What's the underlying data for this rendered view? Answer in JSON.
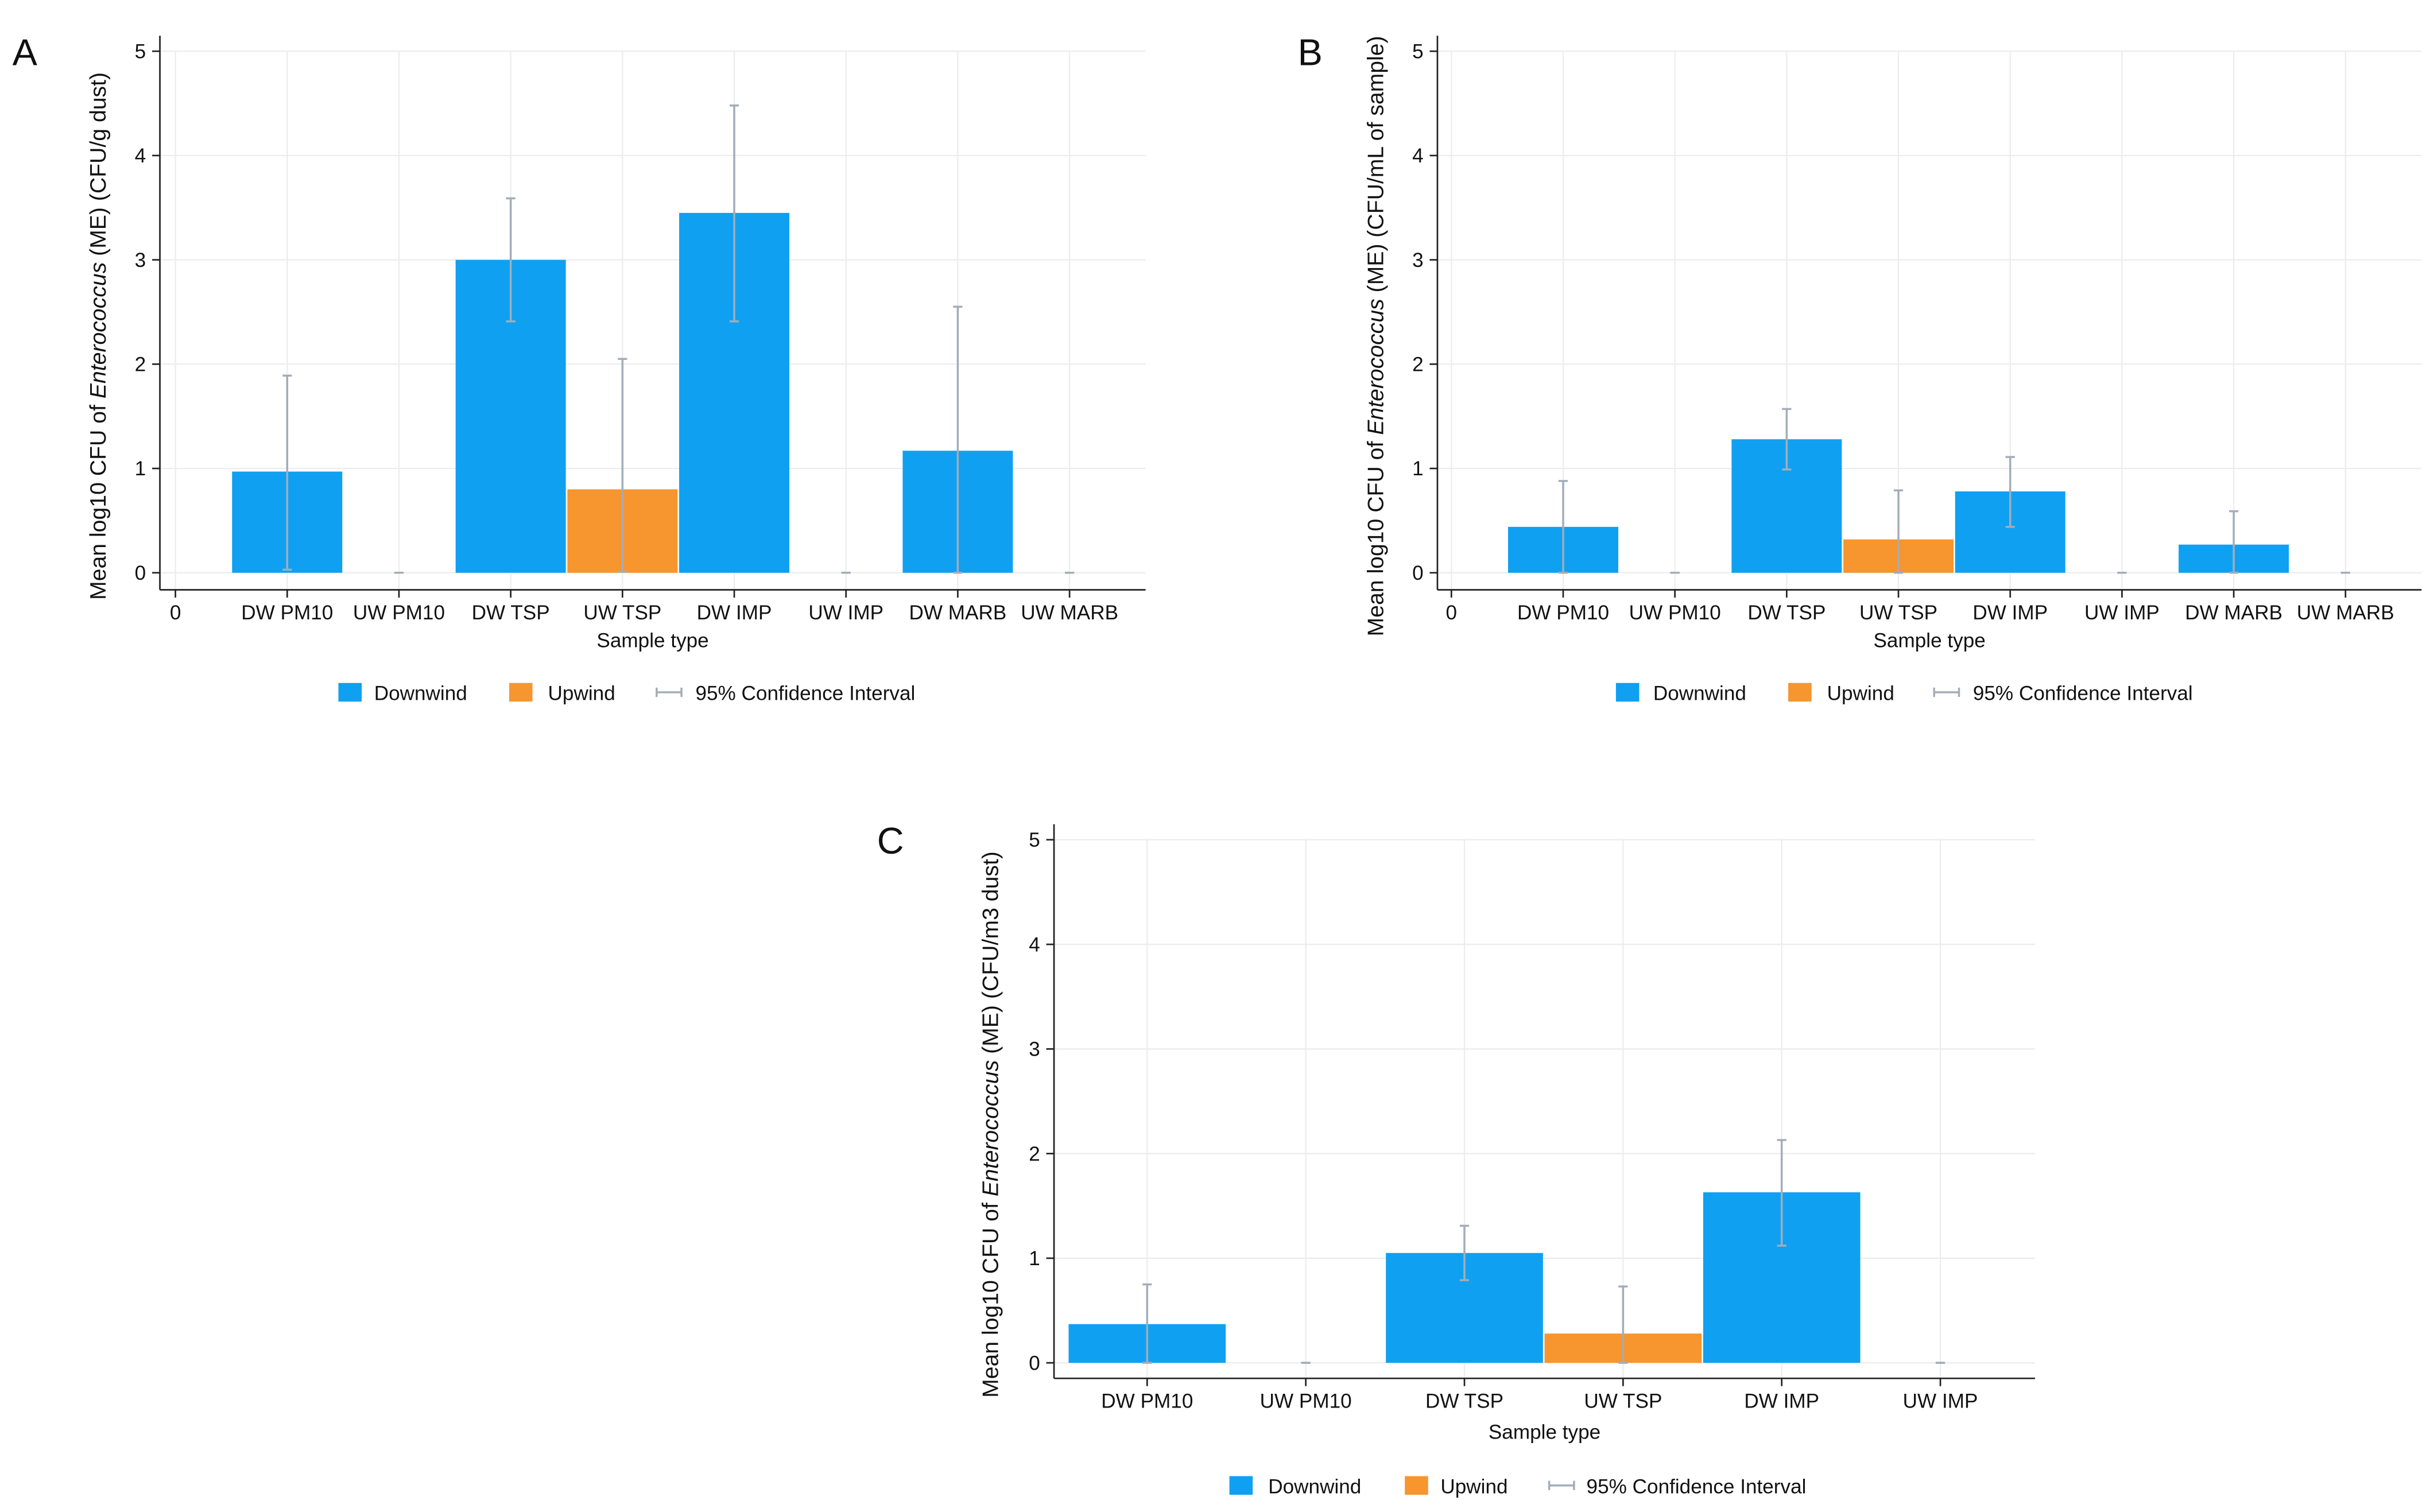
{
  "chart_data": [
    {
      "type": "bar",
      "panel_label": "A",
      "y_label_prefix": "Mean log10 CFU of ",
      "y_label_italic": "Enterococcus",
      "y_label_suffix": " (ME) (CFU/g dust)",
      "x_label": "Sample type",
      "categories": [
        "0",
        "DW PM10",
        "UW PM10",
        "DW TSP",
        "UW TSP",
        "DW IMP",
        "UW IMP",
        "DW MARB",
        "UW MARB"
      ],
      "series": [
        {
          "name": "Downwind",
          "color": "#0fa0f2",
          "values": [
            null,
            0.97,
            null,
            3.0,
            null,
            3.45,
            null,
            1.17,
            null
          ],
          "ci_low": [
            null,
            0.03,
            null,
            2.41,
            null,
            2.41,
            null,
            0,
            null
          ],
          "ci_high": [
            null,
            1.89,
            null,
            3.59,
            null,
            4.48,
            null,
            2.55,
            null
          ]
        },
        {
          "name": "Upwind",
          "color": "#f7952f",
          "values": [
            null,
            null,
            0,
            null,
            0.8,
            null,
            0,
            null,
            0
          ],
          "ci_low": [
            null,
            null,
            0,
            null,
            0.01,
            null,
            0,
            null,
            0
          ],
          "ci_high": [
            null,
            null,
            0,
            null,
            2.05,
            null,
            0,
            null,
            0
          ]
        }
      ],
      "ci_name": "95% Confidence Interval",
      "ci_color": "#a3adb9",
      "ylim": [
        0,
        5
      ],
      "yticks": [
        0,
        1,
        2,
        3,
        4,
        5
      ],
      "grid": true,
      "legend": "bottom"
    },
    {
      "type": "bar",
      "panel_label": "B",
      "y_label_prefix": "Mean log10 CFU of ",
      "y_label_italic": "Enterococcus",
      "y_label_suffix": " (ME) (CFU/mL of sample)",
      "x_label": "Sample type",
      "categories": [
        "0",
        "DW PM10",
        "UW PM10",
        "DW TSP",
        "UW TSP",
        "DW IMP",
        "UW IMP",
        "DW MARB",
        "UW MARB"
      ],
      "series": [
        {
          "name": "Downwind",
          "color": "#0fa0f2",
          "values": [
            null,
            0.44,
            null,
            1.28,
            null,
            0.78,
            null,
            0.27,
            null
          ],
          "ci_low": [
            null,
            0,
            null,
            0.99,
            null,
            0.44,
            null,
            0,
            null
          ],
          "ci_high": [
            null,
            0.88,
            null,
            1.57,
            null,
            1.11,
            null,
            0.59,
            null
          ]
        },
        {
          "name": "Upwind",
          "color": "#f7952f",
          "values": [
            null,
            null,
            0,
            null,
            0.32,
            null,
            0,
            null,
            0
          ],
          "ci_low": [
            null,
            null,
            0,
            null,
            0,
            null,
            0,
            null,
            0
          ],
          "ci_high": [
            null,
            null,
            0,
            null,
            0.79,
            null,
            0,
            null,
            0
          ]
        }
      ],
      "ci_name": "95% Confidence Interval",
      "ci_color": "#a3adb9",
      "ylim": [
        0,
        5
      ],
      "yticks": [
        0,
        1,
        2,
        3,
        4,
        5
      ],
      "grid": true,
      "legend": "bottom"
    },
    {
      "type": "bar",
      "panel_label": "C",
      "y_label_prefix": "Mean log10 CFU of ",
      "y_label_italic": "Enterococcus",
      "y_label_suffix": " (ME) (CFU/m3 dust)",
      "x_label": "Sample type",
      "categories": [
        "DW PM10",
        "UW PM10",
        "DW TSP",
        "UW TSP",
        "DW IMP",
        "UW IMP"
      ],
      "series": [
        {
          "name": "Downwind",
          "color": "#0fa0f2",
          "values": [
            0.37,
            null,
            1.05,
            null,
            1.63,
            null
          ],
          "ci_low": [
            0,
            null,
            0.79,
            null,
            1.12,
            null
          ],
          "ci_high": [
            0.75,
            null,
            1.31,
            null,
            2.13,
            null
          ]
        },
        {
          "name": "Upwind",
          "color": "#f7952f",
          "values": [
            null,
            0,
            null,
            0.28,
            null,
            0
          ],
          "ci_low": [
            null,
            0,
            null,
            0,
            null,
            0
          ],
          "ci_high": [
            null,
            0,
            null,
            0.73,
            null,
            0
          ]
        }
      ],
      "ci_name": "95% Confidence Interval",
      "ci_color": "#a3adb9",
      "ylim": [
        0,
        5
      ],
      "yticks": [
        0,
        1,
        2,
        3,
        4,
        5
      ],
      "grid": true,
      "legend": "bottom"
    }
  ]
}
